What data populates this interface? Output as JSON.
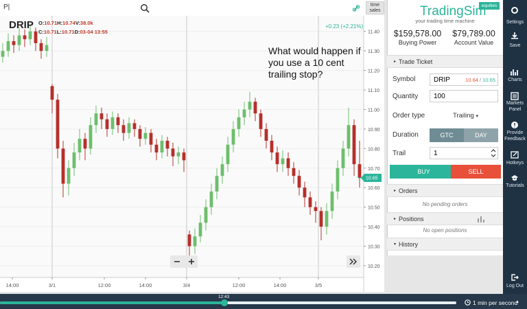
{
  "search": {
    "value": "P|",
    "time_sales": "time sales"
  },
  "quote": {
    "symbol": "DRIP",
    "row1": [
      {
        "label": "O:",
        "value": "10.71"
      },
      {
        "label": "H:",
        "value": "10.74"
      },
      {
        "label": "V:",
        "value": "38.0k"
      }
    ],
    "row2": [
      {
        "label": "C:",
        "value": "10.71"
      },
      {
        "label": "L:",
        "value": "10.71"
      },
      {
        "label": "D:",
        "value": "03-04 13:55"
      }
    ],
    "change": "+0.23 (+2.21%)"
  },
  "annotation": "What would happen if you use a 10 cent trailing stop?",
  "chart_data": {
    "type": "candlestick",
    "up_color": "#6dbf6d",
    "down_color": "#b5302a",
    "open": [
      11.27,
      11.3,
      11.35,
      11.33,
      11.38,
      11.36,
      11.4,
      11.34,
      11.3,
      11.12,
      11.05,
      10.8,
      10.62,
      10.7,
      10.78,
      10.85,
      10.8,
      10.92,
      10.98,
      10.95,
      10.9,
      10.96,
      10.92,
      10.88,
      10.93,
      10.9,
      10.85,
      10.88,
      10.82,
      10.78,
      10.84,
      10.8,
      10.76,
      10.78,
      10.36,
      10.3,
      10.35,
      10.42,
      10.5,
      10.58,
      10.66,
      10.72,
      10.82,
      10.9,
      10.96,
      11.0,
      11.04,
      10.98,
      10.9,
      10.84,
      10.78,
      10.72,
      10.75,
      10.7,
      10.66,
      10.6,
      10.55,
      10.5,
      10.48,
      10.4,
      10.48,
      10.58,
      10.7,
      10.8,
      10.92,
      10.72
    ],
    "high": [
      11.34,
      11.39,
      11.38,
      11.42,
      11.41,
      11.43,
      11.42,
      11.36,
      11.37,
      11.13,
      11.08,
      10.84,
      10.74,
      10.83,
      10.9,
      10.88,
      10.96,
      11.02,
      11.01,
      10.98,
      10.99,
      10.98,
      10.95,
      10.96,
      10.95,
      10.92,
      10.91,
      10.9,
      10.85,
      10.87,
      10.86,
      10.83,
      10.81,
      10.8,
      10.38,
      10.39,
      10.46,
      10.54,
      10.62,
      10.7,
      10.76,
      10.86,
      10.94,
      11.0,
      11.04,
      11.09,
      11.06,
      11.0,
      10.93,
      10.87,
      10.81,
      10.79,
      10.78,
      10.73,
      10.69,
      10.63,
      10.58,
      10.53,
      10.5,
      10.52,
      10.62,
      10.74,
      10.84,
      11.01,
      10.95,
      10.84
    ],
    "low": [
      11.24,
      11.27,
      11.29,
      11.3,
      11.32,
      11.33,
      11.3,
      11.26,
      11.27,
      10.98,
      10.75,
      10.55,
      10.56,
      10.66,
      10.74,
      10.74,
      10.77,
      10.88,
      10.9,
      10.86,
      10.87,
      10.88,
      10.84,
      10.85,
      10.86,
      10.81,
      10.82,
      10.78,
      10.74,
      10.75,
      10.76,
      10.71,
      10.72,
      10.68,
      10.22,
      10.26,
      10.32,
      10.38,
      10.46,
      10.54,
      10.62,
      10.68,
      10.78,
      10.86,
      10.92,
      10.96,
      10.94,
      10.86,
      10.8,
      10.74,
      10.68,
      10.68,
      10.66,
      10.62,
      10.56,
      10.5,
      10.46,
      10.42,
      10.33,
      10.36,
      10.44,
      10.54,
      10.66,
      10.76,
      10.66,
      10.6
    ],
    "close": [
      11.3,
      11.35,
      11.33,
      11.38,
      11.36,
      11.4,
      11.34,
      11.3,
      11.33,
      11.05,
      10.8,
      10.62,
      10.7,
      10.78,
      10.85,
      10.8,
      10.92,
      10.98,
      10.95,
      10.9,
      10.96,
      10.92,
      10.88,
      10.93,
      10.9,
      10.85,
      10.88,
      10.82,
      10.78,
      10.84,
      10.8,
      10.76,
      10.78,
      10.74,
      10.3,
      10.35,
      10.42,
      10.5,
      10.58,
      10.66,
      10.72,
      10.82,
      10.9,
      10.96,
      11.0,
      11.04,
      10.98,
      10.9,
      10.84,
      10.78,
      10.72,
      10.75,
      10.7,
      10.66,
      10.6,
      10.55,
      10.5,
      10.48,
      10.4,
      10.48,
      10.58,
      10.7,
      10.8,
      10.92,
      10.72,
      10.65
    ],
    "last": 10.65,
    "ylim": [
      10.14,
      11.48
    ],
    "yticks": [
      {
        "value": 10.2,
        "label": "10.20"
      },
      {
        "value": 10.3,
        "label": "10.30"
      },
      {
        "value": 10.4,
        "label": "10.40"
      },
      {
        "value": 10.5,
        "label": "10.50"
      },
      {
        "value": 10.6,
        "label": "10.60"
      },
      {
        "value": 10.7,
        "label": "10.70"
      },
      {
        "value": 10.8,
        "label": "10.80"
      },
      {
        "value": 10.9,
        "label": "10.90"
      },
      {
        "value": 11.0,
        "label": "11.00"
      },
      {
        "value": 11.1,
        "label": "11.10"
      },
      {
        "value": 11.2,
        "label": "11.20"
      },
      {
        "value": 11.3,
        "label": "11.30"
      },
      {
        "value": 11.4,
        "label": "11.40"
      }
    ],
    "xticks": [
      {
        "value": 1.75,
        "label": "14:00"
      },
      {
        "value": 9,
        "label": "3/1",
        "separator": true
      },
      {
        "value": 18.5,
        "label": "12:00"
      },
      {
        "value": 26,
        "label": "14:00"
      },
      {
        "value": 33.5,
        "label": "3/4",
        "separator": true
      },
      {
        "value": 43,
        "label": "12:00"
      },
      {
        "value": 50.5,
        "label": "14:00"
      },
      {
        "value": 57.5,
        "label": "3/5",
        "separator": true
      }
    ],
    "grid": true
  },
  "panel": {
    "brand": "TradingSim",
    "badge": "equities",
    "tagline": "your trading time machine",
    "buying_power": {
      "value": "$159,578.00",
      "label": "Buying Power"
    },
    "account_value": {
      "value": "$79,789.00",
      "label": "Account Value"
    },
    "ticket": {
      "title": "Trade Ticket",
      "symbol_label": "Symbol",
      "symbol": "DRIP",
      "bid": "10.64",
      "sep": "/",
      "ask": "10.65",
      "quantity_label": "Quantity",
      "quantity": "100",
      "order_type_label": "Order type",
      "order_type": "Trailing",
      "duration_label": "Duration",
      "gtc": "GTC",
      "day": "DAY",
      "trail_label": "Trail",
      "trail": "1",
      "buy": "BUY",
      "sell": "SELL"
    },
    "orders": {
      "title": "Orders",
      "empty": "No pending orders"
    },
    "positions": {
      "title": "Positions",
      "empty": "No open positions"
    },
    "history": {
      "title": "History"
    }
  },
  "sidebar": [
    {
      "label": "Settings"
    },
    {
      "label": "Save"
    },
    {
      "label": "Charts"
    },
    {
      "label": "Markets Panel"
    },
    {
      "label": "Provide Feedback"
    },
    {
      "label": "Hotkeys"
    },
    {
      "label": "Tutorials"
    },
    {
      "label": "Log Out"
    }
  ],
  "playback": {
    "time": "12:43",
    "speed": "1 min per second"
  }
}
